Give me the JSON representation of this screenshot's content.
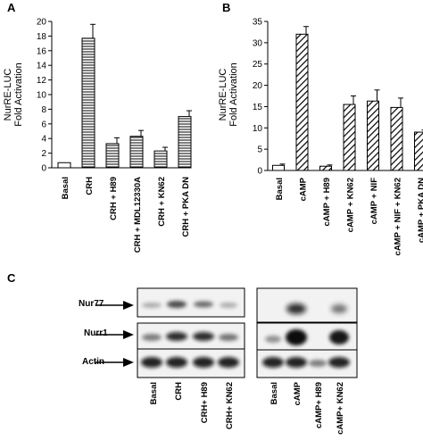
{
  "panel_letters": {
    "a": "A",
    "b": "B",
    "c": "C"
  },
  "chart_data": [
    {
      "type": "bar",
      "panel": "A",
      "ylabel_lines": [
        "NurRE-LUC",
        "Fold Activation"
      ],
      "ylim": [
        0,
        20
      ],
      "yticks": [
        0,
        2,
        4,
        6,
        8,
        10,
        12,
        14,
        16,
        18,
        20
      ],
      "categories": [
        "Basal",
        "CRH",
        "CRH + H89",
        "CRH + MDL12330A",
        "CRH + KN62",
        "CRH + PKA DN"
      ],
      "values": [
        0.7,
        17.7,
        3.3,
        4.3,
        2.3,
        7.0
      ],
      "errors": [
        0,
        1.9,
        0.8,
        0.8,
        0.5,
        0.8
      ],
      "fill": "horizontal-hatch"
    },
    {
      "type": "bar",
      "panel": "B",
      "ylabel_lines": [
        "NurRE-LUC",
        "Fold Activation"
      ],
      "ylim": [
        0,
        35
      ],
      "yticks": [
        0,
        5,
        10,
        15,
        20,
        25,
        30,
        35
      ],
      "categories": [
        "Basal",
        "cAMP",
        "cAMP + H89",
        "cAMP + KN62",
        "cAMP + NIF",
        "cAMP + NIF + KN62",
        "cAMP + PKA DN"
      ],
      "values": [
        1.2,
        32.0,
        1.0,
        15.5,
        16.3,
        14.8,
        9.0
      ],
      "errors": [
        0.3,
        1.8,
        0.3,
        2.0,
        2.6,
        2.2,
        0.5
      ],
      "fill": "diagonal-hatch"
    }
  ],
  "blots": {
    "rows": [
      "Nur77",
      "Nurr1",
      "Actin"
    ],
    "left_lanes": [
      "Basal",
      "CRH",
      "CRH+ H89",
      "CRH+ KN62"
    ],
    "right_lanes": [
      "Basal",
      "cAMP",
      "cAMP+ H89",
      "cAMP+ KN62"
    ]
  }
}
